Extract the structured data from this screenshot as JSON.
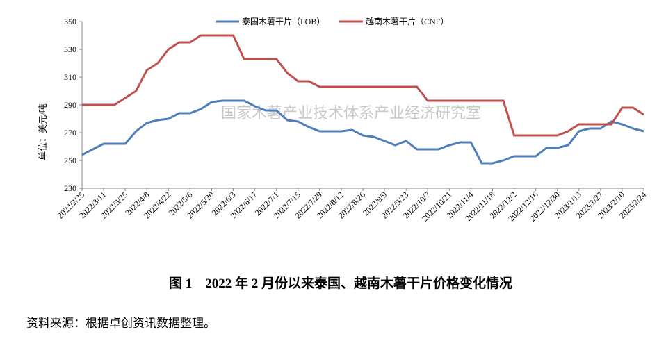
{
  "chart_data": {
    "type": "line",
    "y_label": "单位：美元/吨",
    "watermark": "国家木薯产业技术体系产业经济研究室",
    "caption": "图 1　2022 年 2 月份以来泰国、越南木薯干片价格变化情况",
    "source": "资料来源：根据卓创资讯数据整理。",
    "categories": [
      "2022/2/25",
      null,
      "2022/3/11",
      null,
      "2022/3/25",
      null,
      "2022/4/8",
      null,
      "2022/4/22",
      null,
      "2022/5/6",
      null,
      "2022/5/20",
      null,
      "2022/6/3",
      null,
      "2022/6/17",
      null,
      "2022/7/1",
      null,
      "2022/7/15",
      null,
      "2022/7/29",
      null,
      "2022/8/12",
      null,
      "2022/8/26",
      null,
      "2022/9/9",
      null,
      "2022/9/23",
      null,
      "2022/10/7",
      null,
      "2022/10/21",
      null,
      "2022/11/4",
      null,
      "2022/11/18",
      null,
      "2022/12/2",
      null,
      "2022/12/16",
      null,
      "2022/12/30",
      null,
      "2023/1/13",
      null,
      "2023/1/27",
      null,
      "2023/2/10",
      null,
      "2023/2/24"
    ],
    "series": [
      {
        "name": "泰国木薯干片（FOB）",
        "color": "#4f7ebb",
        "values": [
          254,
          258,
          262,
          262,
          262,
          271,
          277,
          279,
          280,
          284,
          284,
          287,
          292,
          293,
          293,
          293,
          289,
          286,
          286,
          279,
          278,
          274,
          271,
          271,
          271,
          272,
          268,
          267,
          264,
          261,
          264,
          258,
          258,
          258,
          261,
          263,
          263,
          248,
          248,
          250,
          253,
          253,
          253,
          259,
          259,
          261,
          271,
          273,
          273,
          278,
          276,
          273,
          271
        ]
      },
      {
        "name": "越南木薯干片（CNF）",
        "color": "#c0504d",
        "values": [
          290,
          290,
          290,
          290,
          295,
          300,
          315,
          320,
          330,
          335,
          335,
          340,
          340,
          340,
          340,
          323,
          323,
          323,
          323,
          313,
          307,
          307,
          303,
          303,
          303,
          303,
          303,
          303,
          303,
          303,
          303,
          303,
          293,
          293,
          293,
          293,
          293,
          293,
          293,
          293,
          268,
          268,
          268,
          268,
          268,
          271,
          276,
          276,
          276,
          276,
          288,
          288,
          283
        ]
      }
    ],
    "ylim": [
      230,
      350
    ],
    "yticks": [
      230,
      250,
      270,
      290,
      310,
      330,
      350
    ],
    "grid": false,
    "legend": "top"
  }
}
